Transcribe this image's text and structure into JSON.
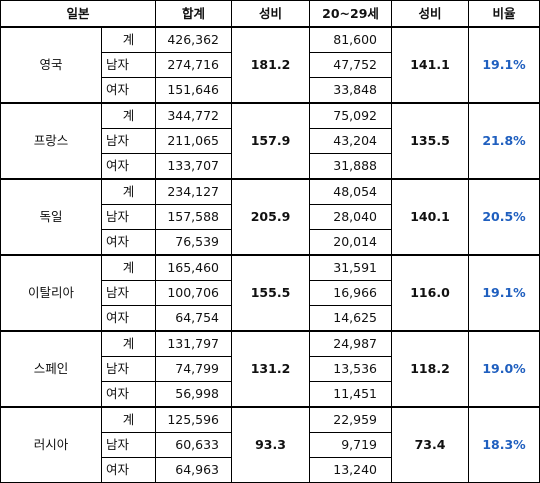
{
  "headers": [
    "일본",
    "합계",
    "성비",
    "20~29세",
    "성비",
    "비율"
  ],
  "sub_labels": [
    "계",
    "남자",
    "여자"
  ],
  "ratio_color": "#1f5fbf",
  "groups": [
    {
      "country": "영국",
      "totals": [
        "426,362",
        "274,716",
        "151,646"
      ],
      "sex_ratio_total": "181.2",
      "young": [
        "81,600",
        "47,752",
        "33,848"
      ],
      "sex_ratio_young": "141.1",
      "ratio": "19.1%"
    },
    {
      "country": "프랑스",
      "totals": [
        "344,772",
        "211,065",
        "133,707"
      ],
      "sex_ratio_total": "157.9",
      "young": [
        "75,092",
        "43,204",
        "31,888"
      ],
      "sex_ratio_young": "135.5",
      "ratio": "21.8%"
    },
    {
      "country": "독일",
      "totals": [
        "234,127",
        "157,588",
        "76,539"
      ],
      "sex_ratio_total": "205.9",
      "young": [
        "48,054",
        "28,040",
        "20,014"
      ],
      "sex_ratio_young": "140.1",
      "ratio": "20.5%"
    },
    {
      "country": "이탈리아",
      "totals": [
        "165,460",
        "100,706",
        "64,754"
      ],
      "sex_ratio_total": "155.5",
      "young": [
        "31,591",
        "16,966",
        "14,625"
      ],
      "sex_ratio_young": "116.0",
      "ratio": "19.1%"
    },
    {
      "country": "스페인",
      "totals": [
        "131,797",
        "74,799",
        "56,998"
      ],
      "sex_ratio_total": "131.2",
      "young": [
        "24,987",
        "13,536",
        "11,451"
      ],
      "sex_ratio_young": "118.2",
      "ratio": "19.0%"
    },
    {
      "country": "러시아",
      "totals": [
        "125,596",
        "60,633",
        "64,963"
      ],
      "sex_ratio_total": "93.3",
      "young": [
        "22,959",
        "9,719",
        "13,240"
      ],
      "sex_ratio_young": "73.4",
      "ratio": "18.3%"
    }
  ]
}
